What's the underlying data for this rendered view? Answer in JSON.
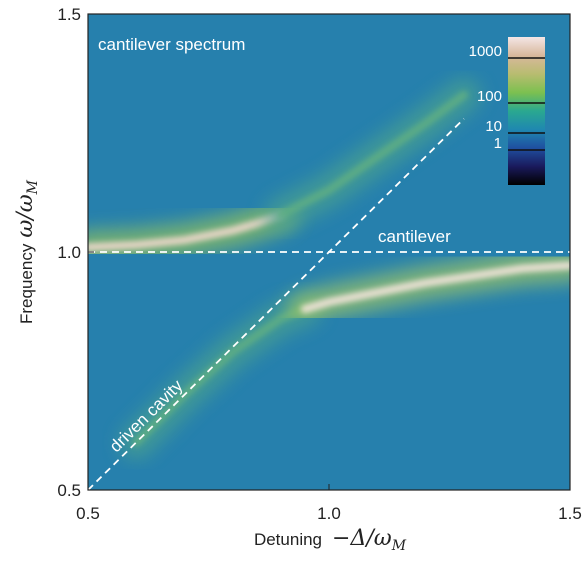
{
  "chart_data": {
    "type": "spectrum",
    "background_color": "#2680ad",
    "xlim": [
      0.5,
      1.5
    ],
    "ylim": [
      0.5,
      1.5
    ],
    "xticks": [
      0.5,
      {
        "value": 1,
        "label": "1.0"
      },
      1.5
    ],
    "yticks": [
      0.5,
      {
        "value": 1,
        "label": "1.0"
      },
      1.5
    ],
    "xlabel": {
      "text": "Detuning",
      "symbol": "−Δ/ω",
      "subscript": "M"
    },
    "ylabel": {
      "text": "Frequency",
      "symbol": "ω/ω",
      "subscript": "M"
    },
    "series": [
      {
        "x": [
          0.5,
          0.6,
          0.7,
          0.8,
          0.85,
          0.9
        ],
        "values": [
          1.01,
          1.015,
          1.025,
          1.045,
          1.06,
          1.078
        ],
        "color": "#f0d8cc",
        "glow": "#8fc060"
      },
      {
        "x": [
          0.9,
          1.0,
          1.1,
          1.2,
          1.28
        ],
        "values": [
          1.078,
          1.13,
          1.2,
          1.27,
          1.33
        ],
        "color": "#5fae84",
        "glow": "#4aa090"
      },
      {
        "x": [
          0.6,
          0.7,
          0.8,
          0.9,
          0.95
        ],
        "values": [
          0.6,
          0.7,
          0.79,
          0.86,
          0.88
        ],
        "color": "#5fae84",
        "glow": "#4aa090"
      },
      {
        "x": [
          0.95,
          1.0,
          1.05,
          1.1,
          1.2,
          1.3,
          1.4,
          1.5
        ],
        "values": [
          0.88,
          0.895,
          0.905,
          0.915,
          0.935,
          0.95,
          0.965,
          0.972
        ],
        "color": "#f4e4dc",
        "glow": "#9cc468"
      }
    ],
    "reference_lines": [
      {
        "label": "cantilever",
        "x": [
          0.5,
          1.5
        ],
        "values": [
          1.0,
          1.0
        ]
      },
      {
        "label": "driven cavity",
        "x": [
          0.5,
          1.28
        ],
        "values": [
          0.5,
          1.28
        ]
      }
    ],
    "annotation": "cantilever spectrum",
    "colorbar": {
      "scale": "log",
      "ticks": [
        1000,
        100,
        10,
        1
      ],
      "colors": [
        "#000000",
        "#1a1a5c",
        "#1f4fa0",
        "#1f88b0",
        "#2aa890",
        "#7cc050",
        "#b8bc70",
        "#d8b89c",
        "#f4e6e6"
      ]
    }
  }
}
